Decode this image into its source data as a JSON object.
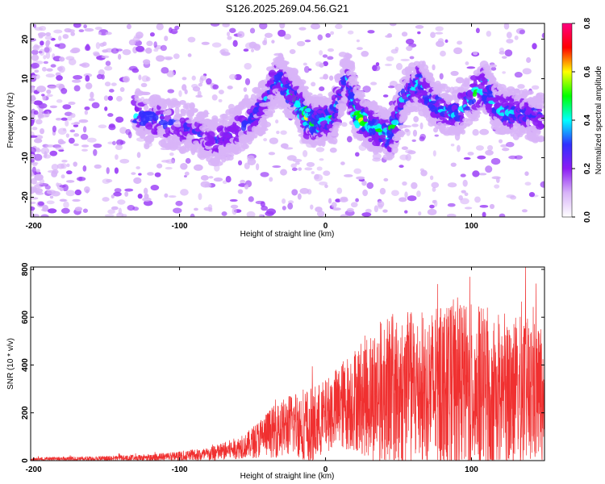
{
  "title": "S126.2025.269.04.56.G21",
  "chart_data": [
    {
      "type": "heatmap",
      "xlabel": "Height of straight line (km)",
      "ylabel": "Frequency (Hz)",
      "xlim": [
        -202,
        150
      ],
      "ylim": [
        -25,
        24
      ],
      "xticks": [
        -200,
        -100,
        0,
        100
      ],
      "yticks": [
        -20,
        -10,
        0,
        10,
        20
      ],
      "colorbar": {
        "label": "Normalized spectral amplitude",
        "range": [
          0,
          0.8
        ],
        "ticks": [
          "0.0",
          "0.2",
          "0.4",
          "0.6",
          "0.8"
        ],
        "colors": [
          "#ffffff",
          "#d8b4f8",
          "#8c1cf4",
          "#3030ff",
          "#00ffff",
          "#00ff00",
          "#ffff00",
          "#ff0000",
          "#ff0080"
        ]
      },
      "ridge": [
        {
          "x": -130,
          "y": 1,
          "amp": 0.35
        },
        {
          "x": -110,
          "y": -1,
          "amp": 0.3
        },
        {
          "x": -90,
          "y": -3,
          "amp": 0.3
        },
        {
          "x": -75,
          "y": -6,
          "amp": 0.3
        },
        {
          "x": -60,
          "y": -3,
          "amp": 0.28
        },
        {
          "x": -45,
          "y": 2,
          "amp": 0.3
        },
        {
          "x": -32,
          "y": 10,
          "amp": 0.35
        },
        {
          "x": -25,
          "y": 7,
          "amp": 0.4
        },
        {
          "x": -18,
          "y": 4,
          "amp": 0.45
        },
        {
          "x": -12,
          "y": 0,
          "amp": 0.55
        },
        {
          "x": -5,
          "y": -1,
          "amp": 0.45
        },
        {
          "x": 5,
          "y": 0,
          "amp": 0.4
        },
        {
          "x": 15,
          "y": 11,
          "amp": 0.35
        },
        {
          "x": 22,
          "y": 1,
          "amp": 0.6
        },
        {
          "x": 32,
          "y": -2,
          "amp": 0.45
        },
        {
          "x": 45,
          "y": -5,
          "amp": 0.45
        },
        {
          "x": 55,
          "y": 6,
          "amp": 0.35
        },
        {
          "x": 65,
          "y": 9,
          "amp": 0.4
        },
        {
          "x": 75,
          "y": 3,
          "amp": 0.35
        },
        {
          "x": 90,
          "y": 1,
          "amp": 0.35
        },
        {
          "x": 108,
          "y": 8,
          "amp": 0.45
        },
        {
          "x": 120,
          "y": 2,
          "amp": 0.4
        },
        {
          "x": 135,
          "y": 1,
          "amp": 0.35
        },
        {
          "x": 148,
          "y": 0,
          "amp": 0.3
        }
      ]
    },
    {
      "type": "line",
      "color": "#f03030",
      "xlabel": "Height of straight line (km)",
      "ylabel": "SNR (10 * v/v)",
      "xlim": [
        -202,
        150
      ],
      "ylim": [
        0,
        810
      ],
      "xticks": [
        -200,
        -100,
        0,
        100
      ],
      "yticks": [
        0,
        200,
        400,
        600,
        800
      ],
      "envelope": [
        {
          "x": -202,
          "base": 5,
          "spread": 8
        },
        {
          "x": -160,
          "base": 8,
          "spread": 10
        },
        {
          "x": -120,
          "base": 12,
          "spread": 15
        },
        {
          "x": -80,
          "base": 25,
          "spread": 30
        },
        {
          "x": -55,
          "base": 60,
          "spread": 50
        },
        {
          "x": -40,
          "base": 110,
          "spread": 100
        },
        {
          "x": -20,
          "base": 160,
          "spread": 140
        },
        {
          "x": -10,
          "base": 130,
          "spread": 180
        },
        {
          "x": 0,
          "base": 190,
          "spread": 150
        },
        {
          "x": 20,
          "base": 260,
          "spread": 220
        },
        {
          "x": 40,
          "base": 290,
          "spread": 320
        },
        {
          "x": 60,
          "base": 300,
          "spread": 330
        },
        {
          "x": 100,
          "base": 300,
          "spread": 360
        },
        {
          "x": 150,
          "base": 280,
          "spread": 300
        }
      ]
    }
  ]
}
